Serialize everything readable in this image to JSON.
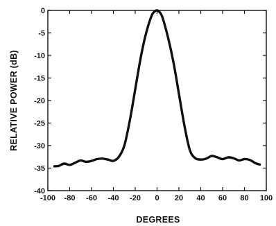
{
  "chart_data": {
    "type": "line",
    "title": "",
    "xlabel": "DEGREES",
    "ylabel": "RELATIVE POWER (dB)",
    "xlim": [
      -100,
      100
    ],
    "ylim": [
      -40,
      0
    ],
    "xticks": [
      -100,
      -80,
      -60,
      -40,
      -20,
      0,
      20,
      40,
      60,
      80,
      100
    ],
    "yticks": [
      0,
      -5,
      -10,
      -15,
      -20,
      -25,
      -30,
      -35,
      -40
    ],
    "xtick_labels": [
      "-100",
      "-80",
      "-60",
      "-40",
      "-20",
      "0",
      "20",
      "40",
      "60",
      "80",
      "100"
    ],
    "ytick_labels": [
      "0",
      "-5",
      "-10",
      "-15",
      "-20",
      "-25",
      "-30",
      "-35",
      "-40"
    ],
    "grid": false,
    "series": [
      {
        "color": "#111111",
        "x": [
          -94,
          -90,
          -85,
          -80,
          -75,
          -70,
          -65,
          -60,
          -55,
          -50,
          -45,
          -40,
          -35,
          -30,
          -25,
          -20,
          -15,
          -10,
          -5,
          -2,
          0,
          2,
          5,
          10,
          15,
          20,
          25,
          30,
          35,
          40,
          45,
          50,
          55,
          60,
          65,
          70,
          75,
          80,
          85,
          90,
          94
        ],
        "y": [
          -34.6,
          -34.5,
          -34.0,
          -34.3,
          -33.8,
          -33.3,
          -33.6,
          -33.4,
          -33.0,
          -32.9,
          -33.1,
          -33.4,
          -32.5,
          -30.0,
          -24.5,
          -17.5,
          -10.5,
          -5.0,
          -1.2,
          -0.2,
          0,
          -0.3,
          -1.6,
          -6.0,
          -11.5,
          -18.5,
          -25.5,
          -31.0,
          -32.8,
          -33.1,
          -32.9,
          -32.3,
          -32.6,
          -33.0,
          -32.6,
          -32.8,
          -33.3,
          -33.0,
          -33.2,
          -33.9,
          -34.2
        ]
      }
    ]
  }
}
